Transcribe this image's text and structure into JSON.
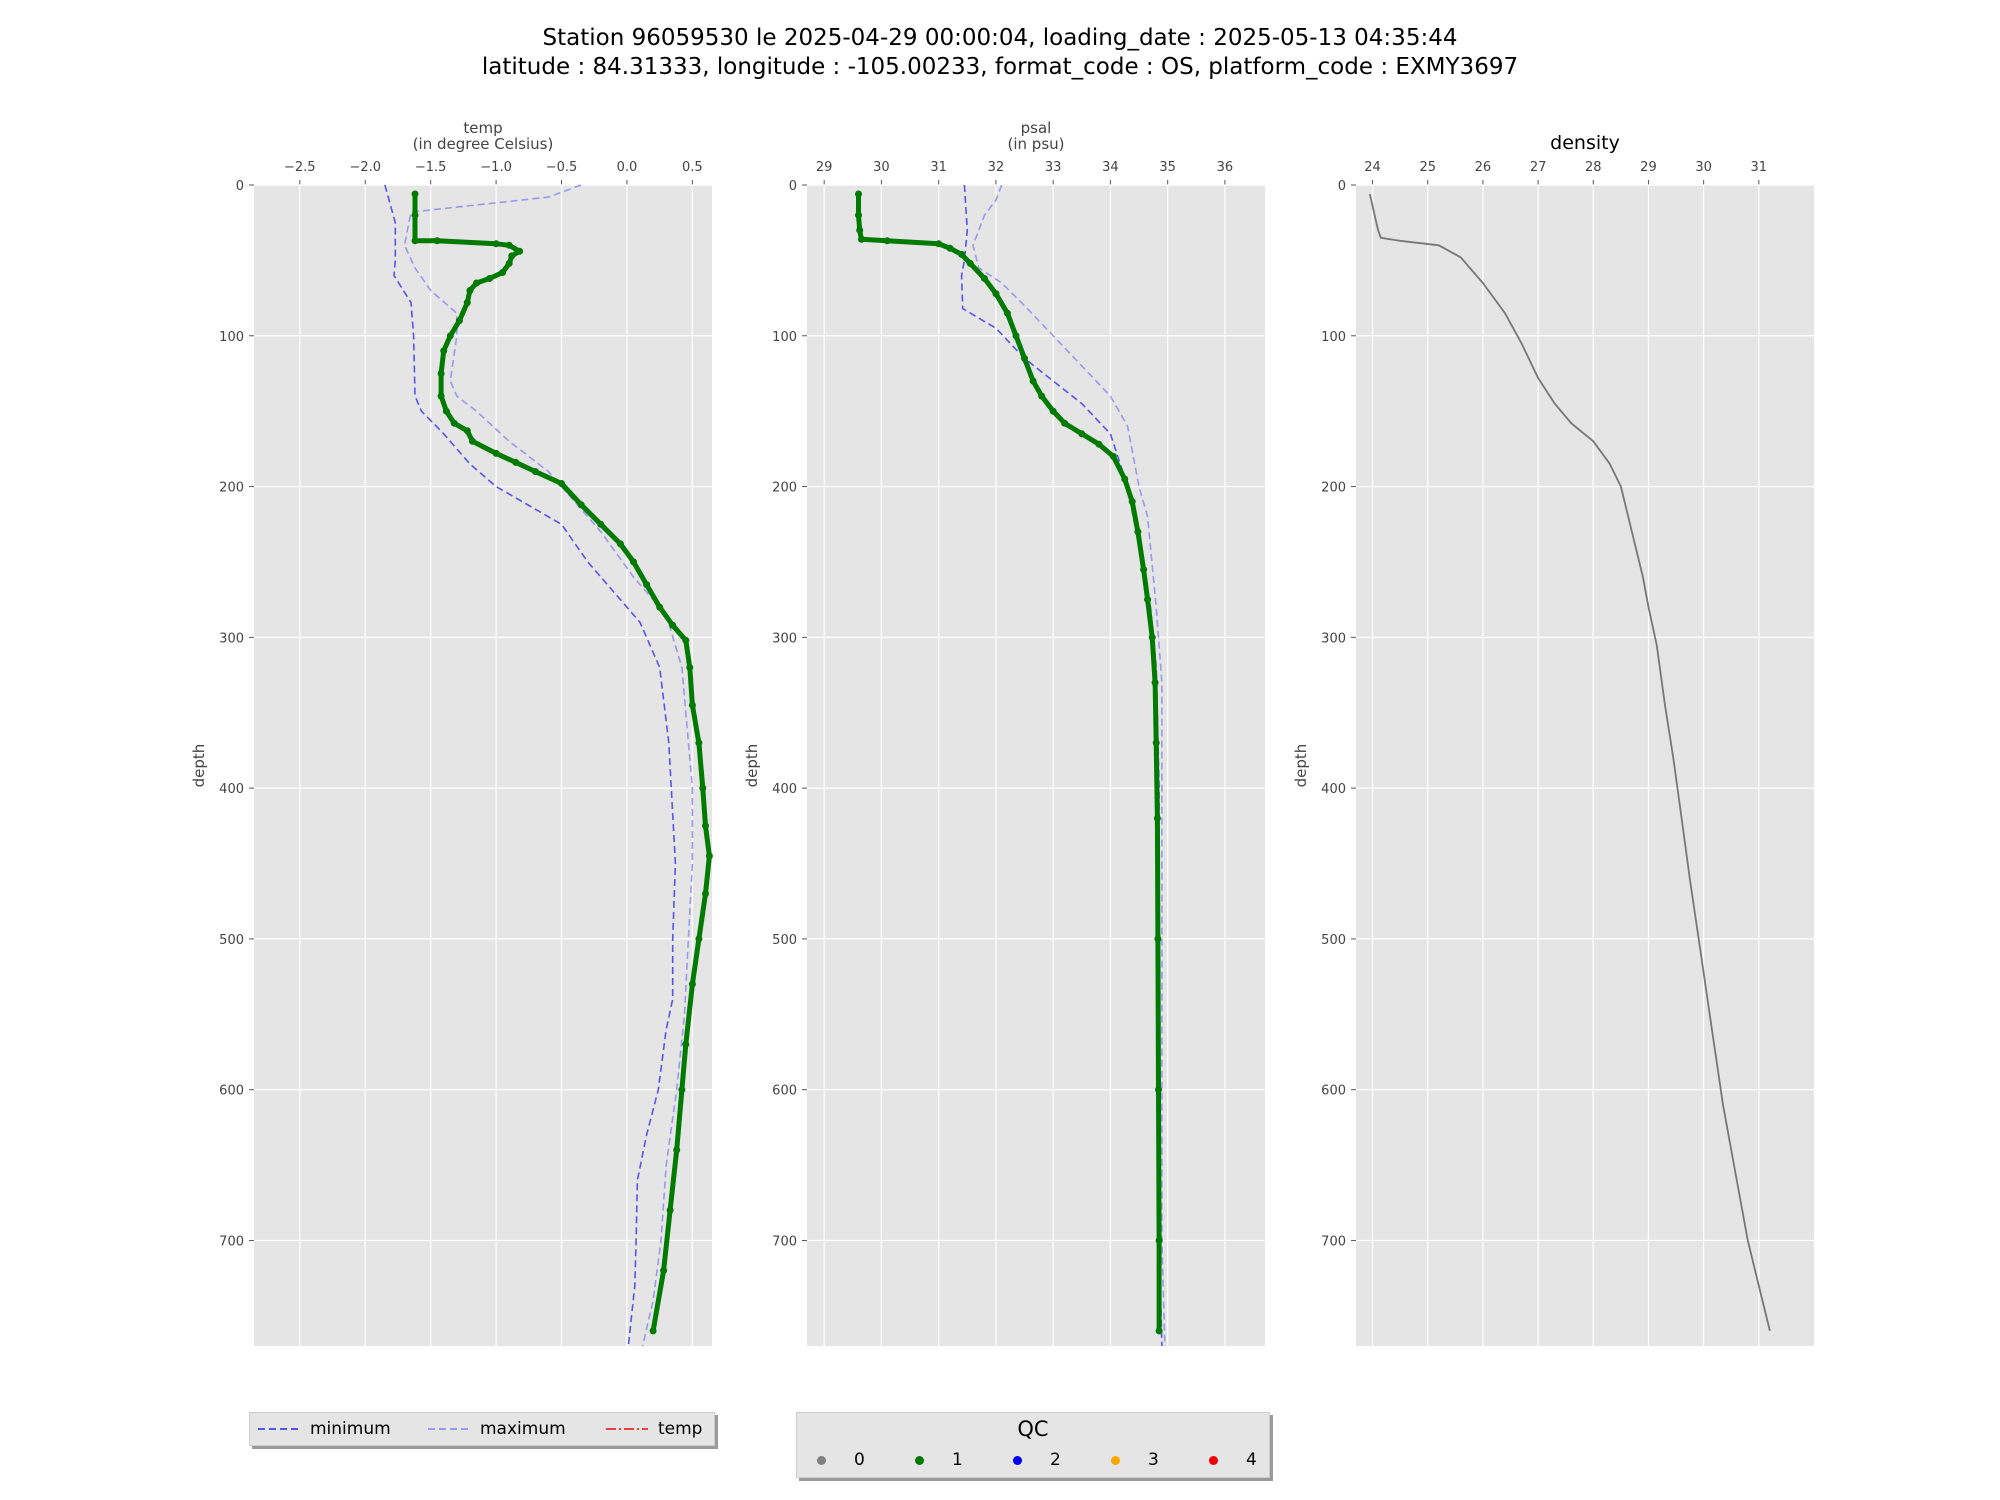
{
  "title": {
    "line1": "Station 96059530 le 2025-04-29 00:00:04, loading_date : 2025-05-13 04:35:44",
    "line2": "latitude : 84.31333, longitude : -105.00233, format_code : OS, platform_code : EXMY3697"
  },
  "colors": {
    "axes_bg": "#e5e5e5",
    "grid": "#ffffff",
    "minimum": "#5555ee",
    "maximum": "#9999ee",
    "profile": "#007a00",
    "density": "#777777",
    "temp_legend": "#e8403a"
  },
  "legend_lines": [
    {
      "label": "minimum",
      "style": "dashed",
      "color": "#5555ee"
    },
    {
      "label": "maximum",
      "style": "dashed",
      "color": "#9999ee"
    },
    {
      "label": "temp",
      "style": "dashdot",
      "color": "#e8403a"
    }
  ],
  "legend_qc": {
    "title": "QC",
    "items": [
      {
        "label": "0",
        "color": "#808080"
      },
      {
        "label": "1",
        "color": "#007a00"
      },
      {
        "label": "2",
        "color": "#0000ee"
      },
      {
        "label": "3",
        "color": "#ffa500"
      },
      {
        "label": "4",
        "color": "#ee0000"
      }
    ]
  },
  "chart_data": [
    {
      "type": "line",
      "title": "temp\n(in degree Celsius)",
      "xlabel": "",
      "ylabel": "depth",
      "xlim": [
        -2.85,
        0.65
      ],
      "ylim": [
        770,
        0
      ],
      "x_axis_position": "top",
      "y_inverted": true,
      "grid": true,
      "xticks": [
        -2.5,
        -2.0,
        -1.5,
        -1.0,
        -0.5,
        0.0,
        0.5
      ],
      "xtick_labels": [
        "−2.5",
        "−2.0",
        "−1.5",
        "−1.0",
        "−0.5",
        "0.0",
        "0.5"
      ],
      "yticks": [
        0,
        100,
        200,
        300,
        400,
        500,
        600,
        700
      ],
      "series": [
        {
          "name": "minimum",
          "style": "dashed",
          "color": "#5555ee",
          "points": [
            [
              -1.85,
              0
            ],
            [
              -1.77,
              25
            ],
            [
              -1.77,
              50
            ],
            [
              -1.78,
              60
            ],
            [
              -1.65,
              78
            ],
            [
              -1.63,
              100
            ],
            [
              -1.62,
              140
            ],
            [
              -1.57,
              150
            ],
            [
              -1.4,
              165
            ],
            [
              -1.2,
              185
            ],
            [
              -1.0,
              200
            ],
            [
              -0.8,
              210
            ],
            [
              -0.5,
              225
            ],
            [
              -0.3,
              250
            ],
            [
              -0.1,
              270
            ],
            [
              0.1,
              290
            ],
            [
              0.25,
              320
            ],
            [
              0.32,
              370
            ],
            [
              0.37,
              450
            ],
            [
              0.35,
              500
            ],
            [
              0.35,
              540
            ],
            [
              0.3,
              560
            ],
            [
              0.24,
              600
            ],
            [
              0.15,
              630
            ],
            [
              0.08,
              660
            ],
            [
              0.07,
              700
            ],
            [
              0.06,
              730
            ],
            [
              0.01,
              770
            ]
          ]
        },
        {
          "name": "maximum",
          "style": "dashed",
          "color": "#9999ee",
          "points": [
            [
              -0.35,
              0
            ],
            [
              -0.6,
              8
            ],
            [
              -1.65,
              18
            ],
            [
              -1.7,
              40
            ],
            [
              -1.62,
              55
            ],
            [
              -1.5,
              70
            ],
            [
              -1.3,
              85
            ],
            [
              -1.3,
              100
            ],
            [
              -1.35,
              130
            ],
            [
              -1.3,
              140
            ],
            [
              -1.15,
              150
            ],
            [
              -0.9,
              170
            ],
            [
              -0.6,
              190
            ],
            [
              -0.4,
              210
            ],
            [
              -0.2,
              230
            ],
            [
              0.05,
              260
            ],
            [
              0.3,
              285
            ],
            [
              0.42,
              320
            ],
            [
              0.45,
              350
            ],
            [
              0.5,
              400
            ],
            [
              0.5,
              450
            ],
            [
              0.47,
              500
            ],
            [
              0.44,
              550
            ],
            [
              0.38,
              600
            ],
            [
              0.3,
              650
            ],
            [
              0.26,
              700
            ],
            [
              0.2,
              740
            ],
            [
              0.12,
              770
            ]
          ]
        },
        {
          "name": "temp",
          "style": "profile",
          "color": "#007a00",
          "points": [
            [
              -1.62,
              6
            ],
            [
              -1.62,
              20
            ],
            [
              -1.62,
              37
            ],
            [
              -1.45,
              37
            ],
            [
              -1.0,
              39
            ],
            [
              -0.9,
              40
            ],
            [
              -0.82,
              44
            ],
            [
              -0.88,
              47
            ],
            [
              -0.9,
              52
            ],
            [
              -0.95,
              58
            ],
            [
              -1.05,
              62
            ],
            [
              -1.15,
              65
            ],
            [
              -1.2,
              70
            ],
            [
              -1.22,
              78
            ],
            [
              -1.28,
              90
            ],
            [
              -1.35,
              100
            ],
            [
              -1.4,
              110
            ],
            [
              -1.42,
              125
            ],
            [
              -1.42,
              140
            ],
            [
              -1.38,
              150
            ],
            [
              -1.32,
              158
            ],
            [
              -1.22,
              163
            ],
            [
              -1.18,
              170
            ],
            [
              -1.0,
              178
            ],
            [
              -0.85,
              184
            ],
            [
              -0.7,
              190
            ],
            [
              -0.5,
              198
            ],
            [
              -0.35,
              212
            ],
            [
              -0.2,
              225
            ],
            [
              -0.05,
              238
            ],
            [
              0.05,
              250
            ],
            [
              0.15,
              265
            ],
            [
              0.25,
              280
            ],
            [
              0.35,
              292
            ],
            [
              0.45,
              302
            ],
            [
              0.48,
              320
            ],
            [
              0.5,
              345
            ],
            [
              0.55,
              370
            ],
            [
              0.58,
              400
            ],
            [
              0.6,
              425
            ],
            [
              0.63,
              445
            ],
            [
              0.6,
              470
            ],
            [
              0.55,
              500
            ],
            [
              0.5,
              530
            ],
            [
              0.45,
              570
            ],
            [
              0.42,
              600
            ],
            [
              0.38,
              640
            ],
            [
              0.33,
              680
            ],
            [
              0.28,
              720
            ],
            [
              0.2,
              760
            ]
          ]
        }
      ]
    },
    {
      "type": "line",
      "title": "psal\n(in psu)",
      "xlabel": "",
      "ylabel": "depth",
      "xlim": [
        28.7,
        36.7
      ],
      "ylim": [
        770,
        0
      ],
      "x_axis_position": "top",
      "y_inverted": true,
      "grid": true,
      "xticks": [
        29,
        30,
        31,
        32,
        33,
        34,
        35,
        36
      ],
      "xtick_labels": [
        "29",
        "30",
        "31",
        "32",
        "33",
        "34",
        "35",
        "36"
      ],
      "yticks": [
        0,
        100,
        200,
        300,
        400,
        500,
        600,
        700
      ],
      "series": [
        {
          "name": "minimum",
          "style": "dashed",
          "color": "#5555ee",
          "points": [
            [
              31.45,
              0
            ],
            [
              31.5,
              30
            ],
            [
              31.45,
              50
            ],
            [
              31.4,
              60
            ],
            [
              31.42,
              82
            ],
            [
              32.0,
              95
            ],
            [
              32.5,
              115
            ],
            [
              33.0,
              130
            ],
            [
              33.5,
              145
            ],
            [
              34.0,
              165
            ],
            [
              34.3,
              200
            ],
            [
              34.5,
              240
            ],
            [
              34.7,
              280
            ],
            [
              34.8,
              320
            ],
            [
              34.85,
              400
            ],
            [
              34.85,
              500
            ],
            [
              34.85,
              600
            ],
            [
              34.85,
              700
            ],
            [
              34.9,
              770
            ]
          ]
        },
        {
          "name": "maximum",
          "style": "dashed",
          "color": "#9999ee",
          "points": [
            [
              32.1,
              0
            ],
            [
              32.0,
              10
            ],
            [
              31.8,
              20
            ],
            [
              31.6,
              40
            ],
            [
              31.7,
              55
            ],
            [
              32.1,
              65
            ],
            [
              32.5,
              80
            ],
            [
              33.0,
              100
            ],
            [
              33.5,
              120
            ],
            [
              34.0,
              140
            ],
            [
              34.3,
              160
            ],
            [
              34.5,
              200
            ],
            [
              34.65,
              220
            ],
            [
              34.8,
              280
            ],
            [
              34.9,
              330
            ],
            [
              34.9,
              400
            ],
            [
              34.9,
              500
            ],
            [
              34.9,
              600
            ],
            [
              34.9,
              700
            ],
            [
              34.95,
              770
            ]
          ]
        },
        {
          "name": "psal",
          "style": "profile",
          "color": "#007a00",
          "points": [
            [
              29.6,
              6
            ],
            [
              29.6,
              20
            ],
            [
              29.62,
              30
            ],
            [
              29.65,
              36
            ],
            [
              30.1,
              37
            ],
            [
              31.0,
              39
            ],
            [
              31.2,
              42
            ],
            [
              31.4,
              46
            ],
            [
              31.55,
              52
            ],
            [
              31.8,
              62
            ],
            [
              32.0,
              72
            ],
            [
              32.2,
              85
            ],
            [
              32.35,
              100
            ],
            [
              32.5,
              115
            ],
            [
              32.65,
              130
            ],
            [
              32.8,
              140
            ],
            [
              33.0,
              150
            ],
            [
              33.2,
              158
            ],
            [
              33.5,
              165
            ],
            [
              33.8,
              172
            ],
            [
              34.05,
              180
            ],
            [
              34.25,
              195
            ],
            [
              34.38,
              210
            ],
            [
              34.48,
              230
            ],
            [
              34.58,
              255
            ],
            [
              34.65,
              275
            ],
            [
              34.73,
              300
            ],
            [
              34.78,
              330
            ],
            [
              34.8,
              370
            ],
            [
              34.82,
              420
            ],
            [
              34.83,
              500
            ],
            [
              34.84,
              600
            ],
            [
              34.85,
              700
            ],
            [
              34.85,
              760
            ]
          ]
        }
      ]
    },
    {
      "type": "line",
      "title": "density",
      "xlabel": "",
      "ylabel": "depth",
      "xlim": [
        23.7,
        32.0
      ],
      "ylim": [
        770,
        0
      ],
      "x_axis_position": "top",
      "y_inverted": true,
      "grid": true,
      "xticks": [
        24,
        25,
        26,
        27,
        28,
        29,
        30,
        31
      ],
      "xtick_labels": [
        "24",
        "25",
        "26",
        "27",
        "28",
        "29",
        "30",
        "31"
      ],
      "yticks": [
        0,
        100,
        200,
        300,
        400,
        500,
        600,
        700
      ],
      "series": [
        {
          "name": "density",
          "style": "solid",
          "color": "#777777",
          "points": [
            [
              23.95,
              6
            ],
            [
              24.1,
              30
            ],
            [
              24.15,
              35
            ],
            [
              24.5,
              37
            ],
            [
              25.2,
              40
            ],
            [
              25.6,
              48
            ],
            [
              26.0,
              65
            ],
            [
              26.4,
              85
            ],
            [
              26.7,
              105
            ],
            [
              27.0,
              128
            ],
            [
              27.3,
              145
            ],
            [
              27.6,
              158
            ],
            [
              28.0,
              170
            ],
            [
              28.3,
              185
            ],
            [
              28.5,
              200
            ],
            [
              28.7,
              230
            ],
            [
              28.9,
              260
            ],
            [
              29.0,
              280
            ],
            [
              29.15,
              305
            ],
            [
              29.3,
              345
            ],
            [
              29.45,
              380
            ],
            [
              29.6,
              420
            ],
            [
              29.75,
              460
            ],
            [
              29.95,
              510
            ],
            [
              30.15,
              560
            ],
            [
              30.35,
              610
            ],
            [
              30.55,
              650
            ],
            [
              30.8,
              700
            ],
            [
              31.0,
              730
            ],
            [
              31.2,
              760
            ]
          ]
        }
      ]
    }
  ]
}
